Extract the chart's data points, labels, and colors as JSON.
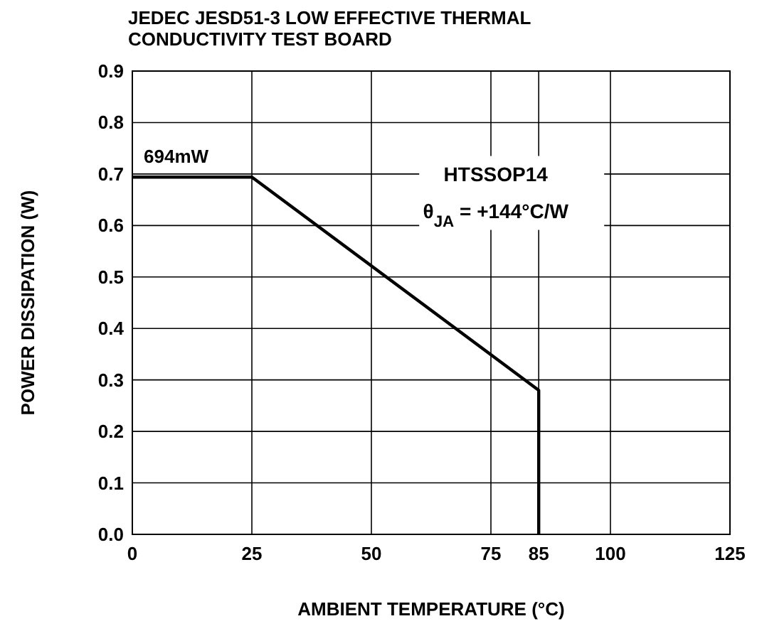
{
  "chart_data": {
    "type": "line",
    "title": "JEDEC JESD51-3 LOW EFFECTIVE THERMAL\nCONDUCTIVITY TEST BOARD",
    "xlabel": "AMBIENT TEMPERATURE (°C)",
    "ylabel": "POWER DISSIPATION (W)",
    "x": [
      0,
      25,
      85,
      85
    ],
    "series": [
      {
        "color": "#000000",
        "values": [
          0.694,
          0.694,
          0.28,
          0
        ]
      }
    ],
    "xlim": [
      0,
      125
    ],
    "xticks": [
      0,
      25,
      50,
      75,
      85,
      100,
      125
    ],
    "ylim": [
      0,
      0.9
    ],
    "yticks": [
      {
        "value": 0,
        "label": "0.0"
      },
      {
        "value": 0.1,
        "label": "0.1"
      },
      {
        "value": 0.2,
        "label": "0.2"
      },
      {
        "value": 0.3,
        "label": "0.3"
      },
      {
        "value": 0.4,
        "label": "0.4"
      },
      {
        "value": 0.5,
        "label": "0.5"
      },
      {
        "value": 0.6,
        "label": "0.6"
      },
      {
        "value": 0.7,
        "label": "0.7"
      },
      {
        "value": 0.8,
        "label": "0.8"
      },
      {
        "value": 0.9,
        "label": "0.9"
      }
    ],
    "grid": true,
    "marker": "none",
    "line_style": "solid",
    "annotations": [
      {
        "text": "694mW",
        "x": 0,
        "y": 0.694
      },
      "HTSSOP14",
      "θ$_{JA}$ = +144°C/W"
    ]
  }
}
